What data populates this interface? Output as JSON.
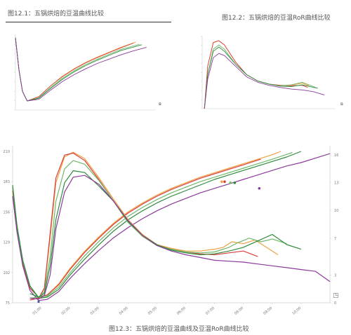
{
  "captions": {
    "fig1": "图12.1：五锅烘焙的豆温曲线比较",
    "fig2": "图12.2：五锅烘焙的豆温RoR曲线比较",
    "fig3": "图12.3：五锅烘焙的豆温曲线及豆温RoR曲线比较"
  },
  "colors": {
    "orange": "#f0a040",
    "red": "#d84040",
    "green": "#2f8a3c",
    "lime": "#6fb86a",
    "purple": "#8a3a9a",
    "axis": "#cccccc"
  },
  "chart_data": [
    {
      "id": "fig1",
      "type": "line",
      "title": "图12.1：五锅烘焙的豆温曲线比较",
      "y_ticks": [
        "",
        "",
        "",
        "",
        "",
        "",
        "",
        "",
        ""
      ],
      "x_ticks": [
        "",
        "",
        "",
        "",
        "",
        "",
        "",
        "",
        "",
        ""
      ],
      "series": [
        {
          "color": "orange",
          "x": [
            0,
            0.3,
            0.6,
            1,
            2,
            3,
            4,
            5,
            6,
            7,
            8,
            9,
            10.3
          ],
          "y": [
            210,
            150,
            110,
            92,
            100,
            120,
            138,
            152,
            164,
            174,
            183,
            192,
            202
          ]
        },
        {
          "color": "red",
          "x": [
            0,
            0.3,
            0.6,
            1,
            2,
            3,
            4,
            5,
            6,
            7,
            8,
            9,
            10.1
          ],
          "y": [
            210,
            150,
            110,
            92,
            100,
            120,
            137,
            151,
            163,
            173,
            182,
            191,
            200
          ]
        },
        {
          "color": "lime",
          "x": [
            0,
            0.3,
            0.6,
            1,
            2,
            3,
            4,
            5,
            6,
            7,
            8,
            9,
            10.6
          ],
          "y": [
            210,
            150,
            110,
            92,
            98,
            117,
            134,
            148,
            160,
            170,
            179,
            188,
            198
          ]
        },
        {
          "color": "green",
          "x": [
            0,
            0.3,
            0.6,
            1,
            2,
            3,
            4,
            5,
            6,
            7,
            8,
            9,
            10.8
          ],
          "y": [
            210,
            150,
            110,
            92,
            97,
            115,
            132,
            146,
            158,
            168,
            177,
            186,
            197
          ]
        },
        {
          "color": "purple",
          "x": [
            0,
            0.3,
            0.6,
            1,
            2,
            3,
            4,
            5,
            6,
            7,
            8,
            9,
            10,
            11.2
          ],
          "y": [
            210,
            150,
            110,
            92,
            95,
            112,
            128,
            141,
            152,
            162,
            170,
            178,
            185,
            192
          ]
        }
      ],
      "xlim": [
        0,
        12
      ],
      "ylim": [
        75,
        215
      ]
    },
    {
      "id": "fig2",
      "type": "line",
      "title": "图12.2：五锅烘焙的豆温RoR曲线比较",
      "y_ticks": [
        "",
        "",
        "",
        "",
        "",
        "",
        "",
        "",
        ""
      ],
      "x_ticks": [
        "",
        "",
        "",
        "",
        "",
        "",
        "",
        "",
        "",
        ""
      ],
      "series": [
        {
          "color": "orange",
          "x": [
            0.2,
            0.5,
            1,
            1.5,
            2,
            3,
            4,
            5,
            6,
            7,
            8,
            9,
            9.6
          ],
          "y": [
            0,
            10,
            15.5,
            16,
            15,
            11,
            8,
            6.5,
            5.8,
            5.5,
            5.5,
            6,
            5.4
          ]
        },
        {
          "color": "red",
          "x": [
            0.2,
            0.5,
            1,
            1.5,
            2,
            3,
            4,
            5,
            6,
            7,
            8,
            9,
            9.5
          ],
          "y": [
            0,
            10,
            15.6,
            16,
            15,
            11,
            8,
            6.5,
            5.8,
            5.5,
            5.4,
            5.5,
            5
          ]
        },
        {
          "color": "lime",
          "x": [
            0.2,
            0.5,
            1,
            1.5,
            2,
            3,
            4,
            5,
            6,
            7,
            8,
            9,
            10.2
          ],
          "y": [
            0,
            8,
            14,
            15,
            14,
            10.5,
            8,
            6.5,
            5.8,
            5.4,
            5.6,
            6.2,
            5
          ]
        },
        {
          "color": "green",
          "x": [
            0.2,
            0.5,
            1,
            1.5,
            2,
            3,
            4,
            5,
            6,
            7,
            8,
            9,
            10.4
          ],
          "y": [
            0,
            8,
            13.5,
            14.5,
            13.5,
            10.5,
            8,
            6.5,
            5.8,
            5.3,
            5.2,
            5.6,
            4.8
          ]
        },
        {
          "color": "purple",
          "x": [
            0.2,
            0.5,
            1,
            1.5,
            2,
            3,
            4,
            5,
            6,
            7,
            8,
            9,
            10,
            11
          ],
          "y": [
            0,
            7,
            12,
            13,
            12.5,
            10,
            7.5,
            6.2,
            5.5,
            5,
            4.6,
            4.4,
            4,
            3.2
          ]
        }
      ],
      "xlim": [
        0,
        12
      ],
      "ylim": [
        0,
        17
      ]
    },
    {
      "id": "fig3",
      "type": "line",
      "title": "图12.3：五锅烘焙的豆温曲线及豆温RoR曲线比较",
      "y_left_ticks": [
        "210",
        "183",
        "156",
        "129",
        "102",
        "75"
      ],
      "y_left_values": [
        210,
        183,
        156,
        129,
        102,
        75
      ],
      "y_right_ticks": [
        "16",
        "13",
        "10",
        "7",
        "3",
        "0"
      ],
      "y_right_values": [
        16,
        13,
        10,
        7,
        3,
        0
      ],
      "x_ticks": [
        "01:00",
        "02:00",
        "03:00",
        "04:00",
        "05:00",
        "06:00",
        "07:00",
        "08:00",
        "09:00",
        "10:00"
      ],
      "x_tick_values": [
        1,
        2,
        3,
        4,
        5,
        6,
        7,
        8,
        9,
        10
      ],
      "xlim": [
        0,
        11
      ],
      "ylim_left": [
        75,
        215
      ],
      "ylim_right": [
        0,
        17
      ],
      "bt_series": [
        {
          "color": "orange",
          "x": [
            0,
            0.15,
            0.35,
            0.6,
            0.9,
            1.2,
            1.6,
            2,
            2.5,
            3,
            3.5,
            4,
            4.5,
            5,
            5.5,
            6,
            6.5,
            7,
            7.5,
            8,
            8.5,
            9,
            9.3
          ],
          "y": [
            175,
            140,
            110,
            88,
            80,
            82,
            92,
            106,
            121,
            134,
            146,
            156,
            164,
            171,
            177,
            182,
            187,
            191,
            195,
            199,
            203,
            207,
            210
          ]
        },
        {
          "color": "red",
          "x": [
            0,
            0.15,
            0.35,
            0.6,
            0.9,
            1.2,
            1.6,
            2,
            2.5,
            3,
            3.5,
            4,
            4.5,
            5,
            5.5,
            6,
            6.5,
            7,
            7.5,
            8,
            8.6
          ],
          "y": [
            175,
            140,
            110,
            88,
            80,
            82,
            91,
            105,
            120,
            133,
            145,
            155,
            163,
            170,
            176,
            181,
            186,
            190,
            194,
            198,
            203
          ]
        },
        {
          "color": "lime",
          "x": [
            0,
            0.15,
            0.35,
            0.6,
            0.9,
            1.2,
            1.6,
            2,
            2.5,
            3,
            3.5,
            4,
            4.5,
            5,
            5.5,
            6,
            6.5,
            7,
            7.5,
            8,
            8.5,
            9,
            9.7
          ],
          "y": [
            178,
            142,
            112,
            90,
            80,
            81,
            89,
            102,
            117,
            130,
            142,
            152,
            160,
            167,
            173,
            178,
            183,
            187,
            191,
            195,
            199,
            203,
            209
          ]
        },
        {
          "color": "green",
          "x": [
            0,
            0.15,
            0.35,
            0.6,
            0.9,
            1.2,
            1.6,
            2,
            2.5,
            3,
            3.5,
            4,
            4.5,
            5,
            5.5,
            6,
            6.5,
            7,
            7.5,
            8,
            8.5,
            9,
            9.5,
            10
          ],
          "y": [
            180,
            144,
            113,
            90,
            79,
            80,
            87,
            100,
            114,
            127,
            139,
            149,
            157,
            164,
            170,
            175,
            180,
            185,
            189,
            193,
            197,
            201,
            205,
            210
          ]
        },
        {
          "color": "purple",
          "x": [
            0,
            0.15,
            0.35,
            0.6,
            0.9,
            1.2,
            1.6,
            2,
            2.5,
            3,
            3.5,
            4,
            4.5,
            5,
            5.5,
            6,
            6.5,
            7,
            7.5,
            8,
            8.5,
            9,
            9.5,
            10,
            10.5,
            11
          ],
          "y": [
            170,
            138,
            108,
            86,
            77,
            78,
            85,
            97,
            110,
            122,
            133,
            142,
            150,
            157,
            163,
            168,
            173,
            177,
            181,
            185,
            189,
            193,
            197,
            200,
            204,
            208
          ]
        }
      ],
      "ror_series": [
        {
          "color": "orange",
          "x": [
            0.6,
            0.9,
            1.1,
            1.3,
            1.5,
            1.8,
            2.1,
            2.5,
            3,
            3.5,
            4,
            4.5,
            5,
            5.5,
            6,
            6.5,
            7,
            7.3,
            7.6,
            8,
            8.4,
            8.8,
            9.2
          ],
          "y": [
            0.3,
            0.5,
            1.5,
            7,
            13,
            15.8,
            16.3,
            15.6,
            13.5,
            11.2,
            9,
            7.4,
            6.3,
            5.9,
            5.6,
            5.6,
            5.8,
            6,
            6.6,
            6.4,
            6.8,
            6,
            5.2
          ]
        },
        {
          "color": "red",
          "x": [
            0.6,
            0.9,
            1.1,
            1.3,
            1.5,
            1.8,
            2.1,
            2.5,
            3,
            3.5,
            4,
            4.5,
            5,
            5.5,
            6,
            6.5,
            7,
            7.5,
            8,
            8.5
          ],
          "y": [
            0.3,
            0.5,
            1.6,
            7.5,
            13.5,
            16,
            16.2,
            15.4,
            13.3,
            11,
            8.8,
            7.2,
            6.2,
            5.8,
            5.5,
            5.3,
            5.2,
            5.4,
            5.6,
            5
          ]
        },
        {
          "color": "lime",
          "x": [
            0.6,
            0.9,
            1.1,
            1.3,
            1.5,
            1.8,
            2.1,
            2.5,
            3,
            3.5,
            4,
            4.5,
            5,
            5.5,
            6,
            6.5,
            7,
            7.5,
            7.8,
            8.2,
            8.6,
            9,
            9.5
          ],
          "y": [
            0.5,
            0.6,
            1.2,
            5,
            11,
            14.5,
            15.4,
            15,
            13.2,
            11,
            8.7,
            7.2,
            6.2,
            5.8,
            5.5,
            5.4,
            5.5,
            6,
            6.5,
            7,
            6.6,
            6.9,
            6.4
          ]
        },
        {
          "color": "green",
          "x": [
            0.6,
            0.9,
            1.1,
            1.3,
            1.5,
            1.8,
            2.1,
            2.5,
            3,
            3.5,
            4,
            4.5,
            5,
            5.5,
            6,
            6.5,
            7,
            7.5,
            8,
            8.5,
            9,
            9.5,
            10
          ],
          "y": [
            1,
            0.6,
            1,
            4,
            9,
            13,
            14.3,
            14.1,
            12.6,
            11,
            8.8,
            7.3,
            6.3,
            5.7,
            5.4,
            5.2,
            5.3,
            5.6,
            6,
            6.7,
            7.4,
            6.3,
            5.8
          ]
        },
        {
          "color": "purple",
          "x": [
            0.6,
            0.9,
            1.1,
            1.3,
            1.5,
            1.8,
            2.1,
            2.5,
            3,
            3.5,
            4,
            4.5,
            5,
            5.5,
            6,
            6.5,
            7,
            7.5,
            8,
            8.5,
            9,
            9.5,
            10,
            10.5,
            11
          ],
          "y": [
            0.5,
            0.4,
            0.8,
            3,
            8,
            12,
            13.6,
            13.8,
            12.8,
            11,
            8.9,
            7.3,
            6.2,
            5.6,
            5.2,
            4.9,
            4.6,
            4.5,
            4.4,
            4.2,
            4,
            3.8,
            3.6,
            3.4,
            2.3
          ]
        }
      ],
      "markers": [
        {
          "color": "orange",
          "x": 7.25,
          "y": 183
        },
        {
          "color": "red",
          "x": 7.35,
          "y": 183
        },
        {
          "color": "lime",
          "x": 7.55,
          "y": 182
        },
        {
          "color": "green",
          "x": 7.7,
          "y": 182
        },
        {
          "color": "purple",
          "x": 8.55,
          "y": 177
        }
      ]
    }
  ]
}
